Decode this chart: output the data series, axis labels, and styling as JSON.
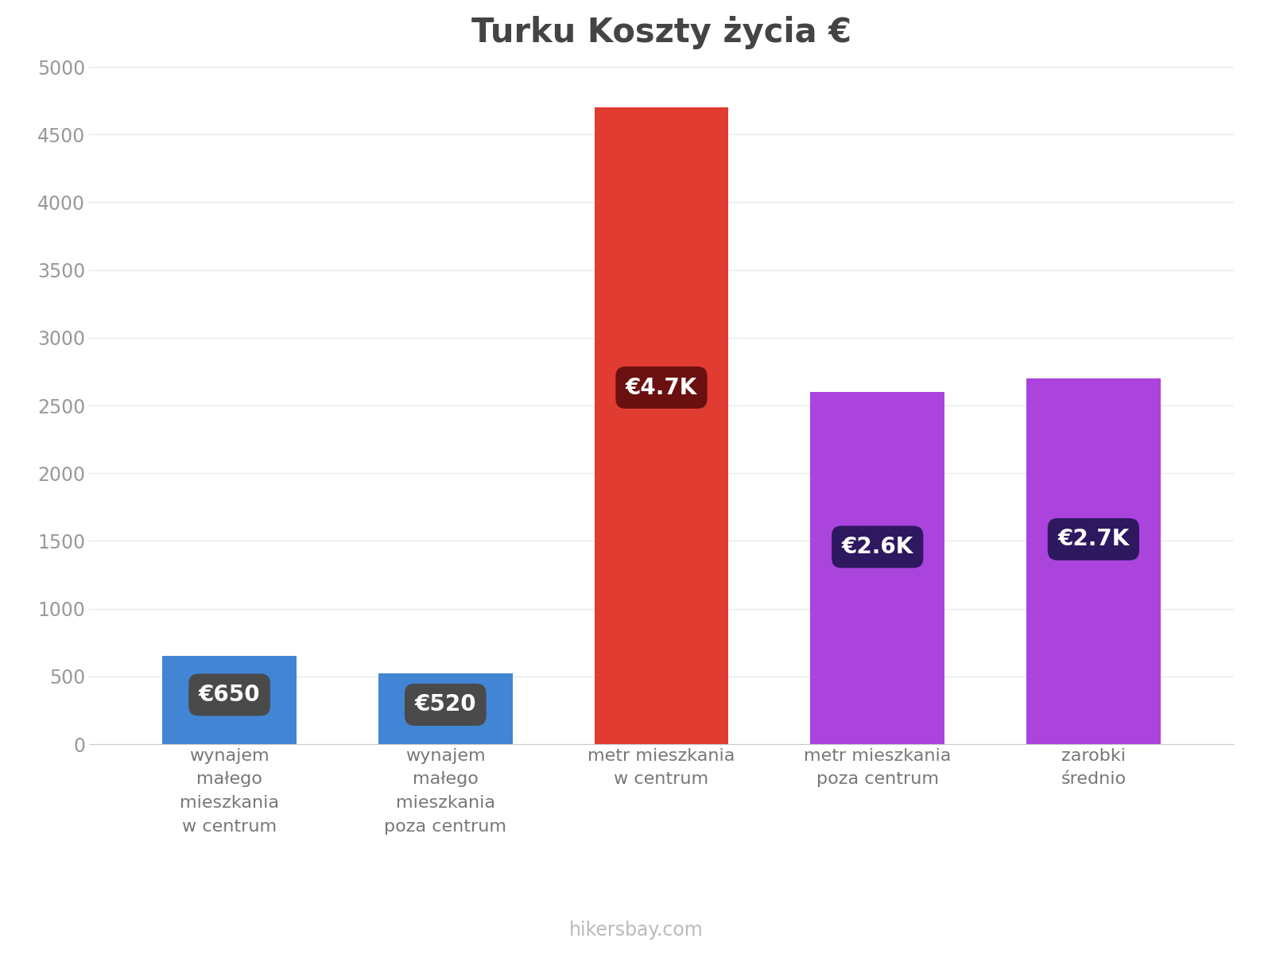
{
  "title": "Turku Koszty życia €",
  "categories": [
    "wynajem\nmałego\nmieszkania\nw centrum",
    "wynajem\nmałego\nmieszkania\npoza centrum",
    "metr mieszkania\nw centrum",
    "metr mieszkania\npoza centrum",
    "zarobki\nśrednio"
  ],
  "values": [
    650,
    520,
    4700,
    2600,
    2700
  ],
  "bar_colors": [
    "#4285d4",
    "#4285d4",
    "#e03c31",
    "#aa44dd",
    "#aa44dd"
  ],
  "label_texts": [
    "€650",
    "€520",
    "€4.7K",
    "€2.6K",
    "€2.7K"
  ],
  "label_bg_colors": [
    "#4a4a4a",
    "#4a4a4a",
    "#6b1010",
    "#2e1860",
    "#2e1860"
  ],
  "ylim": [
    0,
    5000
  ],
  "yticks": [
    0,
    500,
    1000,
    1500,
    2000,
    2500,
    3000,
    3500,
    4000,
    4500,
    5000
  ],
  "background_color": "#ffffff",
  "watermark": "hikersbay.com",
  "title_fontsize": 30,
  "tick_fontsize": 17,
  "label_fontsize": 20,
  "watermark_fontsize": 17,
  "bar_width": 0.62
}
